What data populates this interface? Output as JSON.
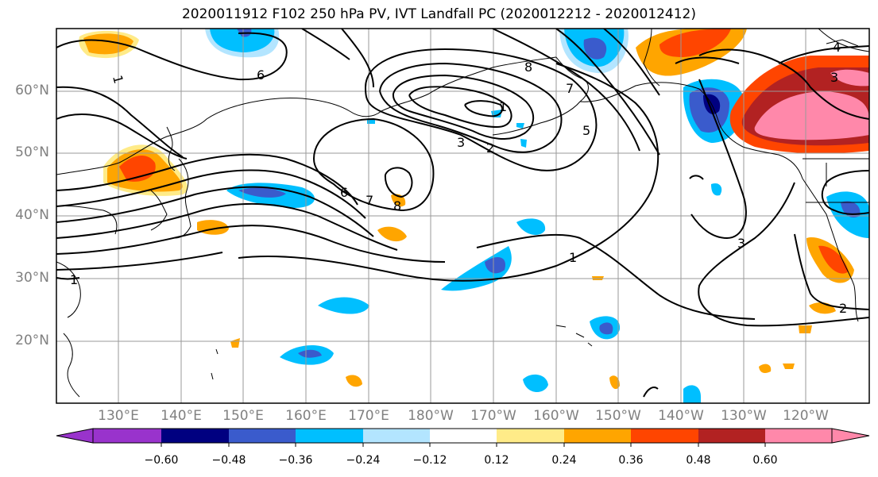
{
  "title": "2020011912 F102 250 hPa PV, IVT Landfall PC (2020012212 - 2020012412)",
  "lat_labels": [
    "60°N",
    "50°N",
    "40°N",
    "30°N",
    "20°N"
  ],
  "lon_labels": [
    "130°E",
    "140°E",
    "150°E",
    "160°E",
    "170°E",
    "180°W",
    "170°W",
    "160°W",
    "150°W",
    "140°W",
    "130°W",
    "120°W"
  ],
  "contour_labels": [
    "1",
    "6",
    "6",
    "7",
    "8",
    "8",
    "1",
    "3",
    "2",
    "5",
    "7",
    "1",
    "3",
    "3",
    "4",
    "1",
    "2"
  ],
  "colorbar": {
    "tick_labels": [
      "−0.60",
      "−0.48",
      "−0.36",
      "−0.24",
      "−0.12",
      "0.12",
      "0.24",
      "0.36",
      "0.48",
      "0.60"
    ],
    "colors": [
      "#9933cc",
      "#000080",
      "#3a5bcc",
      "#00bfff",
      "#b3e5ff",
      "#ffffff",
      "#ffeb88",
      "#ffa500",
      "#ff4500",
      "#b22222",
      "#ff88aa"
    ]
  }
}
